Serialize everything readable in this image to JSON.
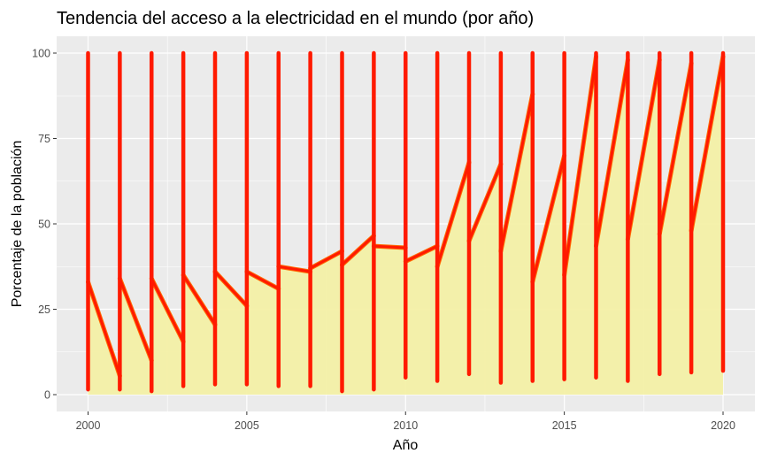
{
  "chart_data": {
    "type": "line",
    "title": "Tendencia del acceso a la electricidad en el mundo (por año)",
    "xlabel": "Año",
    "ylabel": "Porcentaje de la población",
    "xlim": [
      2000,
      2020
    ],
    "ylim": [
      0,
      100
    ],
    "x_ticks": [
      2000,
      2005,
      2010,
      2015,
      2020
    ],
    "y_ticks": [
      0,
      25,
      50,
      75,
      100
    ],
    "grid": true,
    "legend": "none",
    "colors": {
      "panel": "#ebebeb",
      "grid": "#ffffff",
      "area_fill": "#f3f0a6",
      "line": "#ff1a00",
      "line_edge": "#ff6a00"
    },
    "x": [
      2000,
      2001,
      2002,
      2003,
      2004,
      2005,
      2006,
      2007,
      2008,
      2009,
      2010,
      2011,
      2012,
      2013,
      2014,
      2015,
      2016,
      2017,
      2018,
      2019,
      2020
    ],
    "year_min": [
      1.5,
      1.5,
      1.0,
      2.5,
      3.0,
      3.0,
      2.5,
      2.5,
      1.0,
      1.5,
      5.0,
      4.0,
      6.0,
      3.5,
      4.0,
      4.5,
      5.0,
      4.0,
      6.0,
      6.5,
      7.0
    ],
    "year_max": [
      100,
      100,
      100,
      100,
      100,
      100,
      100,
      100,
      100,
      100,
      100,
      100,
      100,
      100,
      100,
      100,
      100,
      100,
      100,
      100,
      100
    ],
    "year_start": [
      33,
      34,
      34,
      35,
      36,
      36,
      37.5,
      37,
      38,
      43.5,
      39,
      37.5,
      45,
      42,
      33,
      35,
      43.5,
      45.5,
      47,
      48,
      94
    ],
    "year_end": [
      5.5,
      10,
      15.5,
      20.5,
      26,
      31,
      36,
      42,
      46.5,
      43,
      43.5,
      68,
      67.5,
      88,
      70,
      99,
      98,
      98,
      97,
      99,
      94
    ]
  }
}
